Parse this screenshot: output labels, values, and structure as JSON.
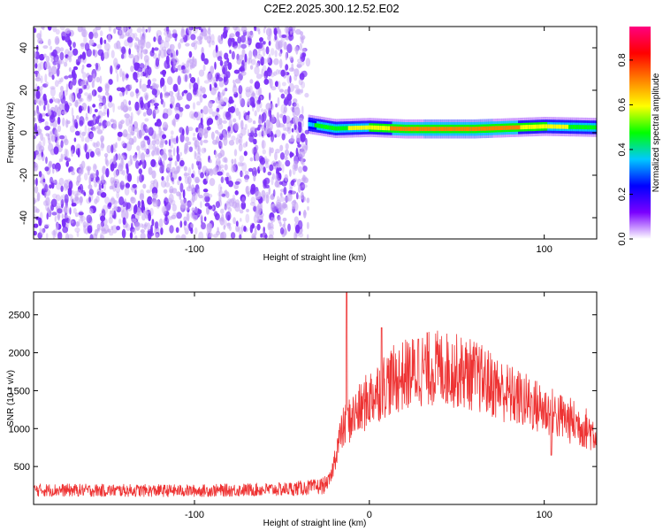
{
  "figure": {
    "title": "C2E2.2025.300.12.52.E02"
  },
  "chart_data": [
    {
      "type": "heatmap",
      "xlabel": "Height of straight line (km)",
      "ylabel": "Frequency (Hz)",
      "xlim": [
        -192,
        130
      ],
      "ylim": [
        -50,
        50
      ],
      "xticks": [
        -100,
        0,
        100
      ],
      "xtick_labels": [
        "-100",
        "",
        "100"
      ],
      "yticks": [
        -40,
        -20,
        0,
        20,
        40
      ],
      "ytick_labels": [
        "-40",
        "-20",
        "0",
        "20",
        "40"
      ],
      "noise_region_x": [
        -192,
        -35
      ],
      "signal_band": {
        "x_start": -35,
        "x_end": 130,
        "center_frequency_hz": [
          [
            -35,
            4
          ],
          [
            -20,
            2
          ],
          [
            0,
            2.5
          ],
          [
            20,
            1.8
          ],
          [
            60,
            1.8
          ],
          [
            100,
            3
          ],
          [
            130,
            2.5
          ]
        ],
        "peak_amplitude": [
          [
            -35,
            0.4
          ],
          [
            -10,
            0.55
          ],
          [
            20,
            0.7
          ],
          [
            60,
            0.75
          ],
          [
            100,
            0.6
          ],
          [
            130,
            0.45
          ]
        ]
      },
      "colorbar": {
        "label": "Normalized spectral amplitude",
        "range": [
          0.0,
          0.95
        ],
        "ticks": [
          0.0,
          0.2,
          0.4,
          0.6,
          0.8
        ],
        "tick_labels": [
          "0.0",
          "0.2",
          "0.4",
          "0.6",
          "0.8"
        ],
        "colors": [
          "#ffffff",
          "#7a00ff",
          "#0000ff",
          "#00c8ff",
          "#00ff00",
          "#ffff00",
          "#ff8000",
          "#ff0000",
          "#ff0080"
        ]
      },
      "grid": false,
      "colors": {
        "noise": "#7b2ff7",
        "noise_light": "#c6a6f5"
      }
    },
    {
      "type": "line",
      "xlabel": "Height of straight line (km)",
      "ylabel": "SNR (10 * v/v)",
      "xlim": [
        -192,
        130
      ],
      "ylim": [
        0,
        2800
      ],
      "xticks": [
        -100,
        0,
        100
      ],
      "xtick_labels": [
        "-100",
        "0",
        "100"
      ],
      "yticks": [
        500,
        1000,
        1500,
        2000,
        2500
      ],
      "ytick_labels": [
        "500",
        "1000",
        "1500",
        "2000",
        "2500"
      ],
      "envelope": {
        "x": [
          -192,
          -150,
          -100,
          -50,
          -30,
          -25,
          -22,
          -18,
          -15,
          -10,
          -5,
          0,
          10,
          20,
          30,
          40,
          50,
          60,
          70,
          80,
          90,
          100,
          110,
          120,
          130
        ],
        "y": [
          190,
          185,
          180,
          200,
          230,
          260,
          350,
          800,
          1000,
          1150,
          1250,
          1400,
          1600,
          1700,
          1780,
          1800,
          1760,
          1700,
          1580,
          1450,
          1350,
          1250,
          1150,
          1050,
          930
        ]
      },
      "spikes": [
        {
          "x": -13,
          "y": 2800
        },
        {
          "x": 7,
          "y": 2330
        },
        {
          "x": 28,
          "y": 2180
        },
        {
          "x": 103,
          "y": 1200
        },
        {
          "x": 104,
          "y": 650
        }
      ],
      "grid": false,
      "colors": {
        "line": "#ee3333"
      }
    }
  ]
}
